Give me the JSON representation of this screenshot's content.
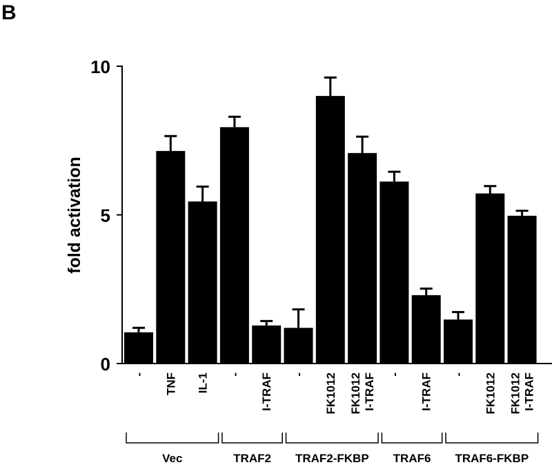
{
  "panel_label": "B",
  "chart_data": {
    "type": "bar",
    "ylabel": "fold activation",
    "ylim": [
      0,
      10
    ],
    "yticks": [
      0,
      5,
      10
    ],
    "categories": [
      {
        "label": "-",
        "value": 1.05,
        "error": 0.15
      },
      {
        "label": "TNF",
        "value": 7.15,
        "error": 0.5
      },
      {
        "label": "IL-1",
        "value": 5.45,
        "error": 0.5
      },
      {
        "label": "-",
        "value": 7.95,
        "error": 0.35
      },
      {
        "label": "I-TRAF",
        "value": 1.28,
        "error": 0.15
      },
      {
        "label": "-",
        "value": 1.2,
        "error": 0.62
      },
      {
        "label": "FK1012",
        "value": 9.0,
        "error": 0.62
      },
      {
        "label": "FK1012\nI-TRAF",
        "value": 7.08,
        "error": 0.55
      },
      {
        "label": "-",
        "value": 6.12,
        "error": 0.33
      },
      {
        "label": "I-TRAF",
        "value": 2.3,
        "error": 0.22
      },
      {
        "label": "-",
        "value": 1.48,
        "error": 0.25
      },
      {
        "label": "FK1012",
        "value": 5.72,
        "error": 0.25
      },
      {
        "label": "FK1012\nI-TRAF",
        "value": 4.97,
        "error": 0.17
      }
    ],
    "groups": [
      {
        "label": "Vec",
        "start": 0,
        "end": 2
      },
      {
        "label": "TRAF2",
        "start": 3,
        "end": 4
      },
      {
        "label": "TRAF2-FKBP",
        "start": 5,
        "end": 7
      },
      {
        "label": "TRAF6",
        "start": 8,
        "end": 9
      },
      {
        "label": "TRAF6-FKBP",
        "start": 10,
        "end": 12
      }
    ],
    "bar_color": "#000000"
  }
}
